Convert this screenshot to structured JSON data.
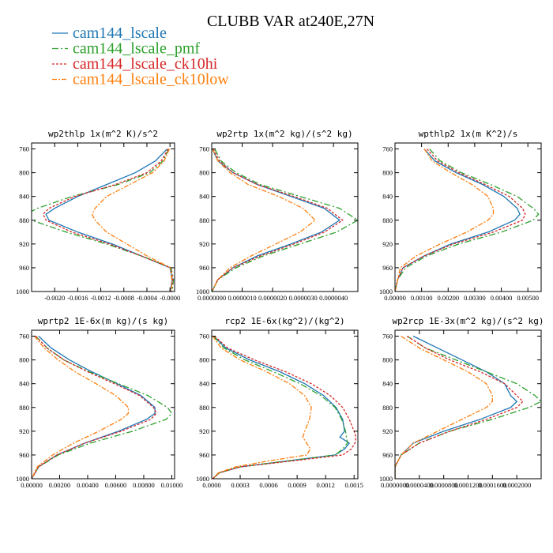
{
  "title": "CLUBB VAR at240E,27N",
  "legend": [
    {
      "name": "cam144_lscale",
      "color": "#1f77b4",
      "dash": ""
    },
    {
      "name": "cam144_lscale_pmf",
      "color": "#2ca02c",
      "dash": "8,3,2,3"
    },
    {
      "name": "cam144_lscale_ck10hi",
      "color": "#d62728",
      "dash": "3,2"
    },
    {
      "name": "cam144_lscale_ck10low",
      "color": "#ff7f0e",
      "dash": "6,2,2,2"
    }
  ],
  "chart_data": [
    {
      "type": "line",
      "title": "wp2thlp  1x(m^2 K)/s^2",
      "ylabel": "",
      "ylim": [
        1000,
        750
      ],
      "yticks": [
        760,
        800,
        840,
        880,
        920,
        960,
        1000
      ],
      "xlim": [
        -0.0024,
        8e-05
      ],
      "xticks": [
        -0.002,
        -0.0016,
        -0.0012,
        -0.0008,
        -0.0004,
        0.0
      ],
      "xticklabels": [
        "-0.0020",
        "-0.0016",
        "-0.0012",
        "-0.0008",
        "-0.0004",
        "-0.0000"
      ],
      "y": [
        760,
        780,
        800,
        820,
        840,
        860,
        870,
        880,
        900,
        920,
        940,
        960,
        980,
        1000
      ],
      "series": [
        {
          "name": "cam144_lscale",
          "values": [
            -5e-05,
            -0.00025,
            -0.0006,
            -0.0011,
            -0.0016,
            -0.002,
            -0.00215,
            -0.0021,
            -0.0016,
            -0.001,
            -0.0005,
            0.0,
            4e-05,
            0.0
          ]
        },
        {
          "name": "cam144_lscale_pmf",
          "values": [
            -2e-05,
            -0.00012,
            -0.00035,
            -0.0009,
            -0.0017,
            -0.0023,
            -0.0025,
            -0.0024,
            -0.0018,
            -0.0011,
            -0.0005,
            2e-05,
            6e-05,
            4e-05
          ]
        },
        {
          "name": "cam144_lscale_ck10hi",
          "values": [
            -3e-05,
            -0.00015,
            -0.0004,
            -0.00095,
            -0.00165,
            -0.0021,
            -0.0022,
            -0.00215,
            -0.0017,
            -0.00105,
            -0.0005,
            1e-05,
            5e-05,
            2e-05
          ]
        },
        {
          "name": "cam144_lscale_ck10low",
          "values": [
            -1e-05,
            -0.0001,
            -0.0003,
            -0.0007,
            -0.0011,
            -0.0013,
            -0.00135,
            -0.0013,
            -0.0011,
            -0.00075,
            -0.0004,
            1e-05,
            3e-05,
            2e-05
          ]
        }
      ]
    },
    {
      "type": "line",
      "title": "wp2rtp  1x(m^2 kg)/(s^2 kg)",
      "ylabel": "",
      "ylim": [
        1000,
        750
      ],
      "yticks": [
        760,
        800,
        840,
        880,
        920,
        960,
        1000
      ],
      "xlim": [
        0.0,
        4.8e-06
      ],
      "xticks": [
        0.0,
        1e-06,
        2e-06,
        3e-06,
        4e-06
      ],
      "xticklabels": [
        "0.0000000",
        "0.0000010",
        "0.0000020",
        "0.0000030",
        "0.0000040"
      ],
      "y": [
        760,
        780,
        800,
        820,
        840,
        860,
        880,
        900,
        920,
        940,
        960,
        980,
        1000
      ],
      "series": [
        {
          "name": "cam144_lscale",
          "values": [
            2e-08,
            2e-07,
            7e-07,
            1.5e-06,
            2.6e-06,
            3.7e-06,
            4.2e-06,
            3.6e-06,
            2.6e-06,
            1.5e-06,
            7e-07,
            2e-07,
            1e-08
          ]
        },
        {
          "name": "cam144_lscale_pmf",
          "values": [
            1e-07,
            3e-07,
            8e-07,
            1.6e-06,
            2.9e-06,
            4.2e-06,
            4.8e-06,
            4.1e-06,
            2.9e-06,
            1.7e-06,
            8e-07,
            2e-07,
            2e-08
          ]
        },
        {
          "name": "cam144_lscale_ck10hi",
          "values": [
            5e-08,
            2.5e-07,
            7e-07,
            1.5e-06,
            2.7e-06,
            3.8e-06,
            4.3e-06,
            3.7e-06,
            2.7e-06,
            1.6e-06,
            7e-07,
            2e-07,
            1e-08
          ]
        },
        {
          "name": "cam144_lscale_ck10low",
          "values": [
            3e-08,
            2e-07,
            6e-07,
            1.2e-06,
            2.2e-06,
            3e-06,
            3.4e-06,
            2.9e-06,
            2.1e-06,
            1.3e-06,
            6e-07,
            2e-07,
            1e-08
          ]
        }
      ]
    },
    {
      "type": "line",
      "title": "wpthlp2  1x(m K^2)/s",
      "ylabel": "",
      "ylim": [
        1000,
        750
      ],
      "yticks": [
        760,
        800,
        840,
        880,
        920,
        960,
        1000
      ],
      "xlim": [
        0.0,
        0.0055
      ],
      "xticks": [
        0.0,
        0.001,
        0.002,
        0.003,
        0.004,
        0.005
      ],
      "xticklabels": [
        "0.00000",
        "0.00100",
        "0.00200",
        "0.00300",
        "0.00400",
        "0.00500"
      ],
      "y": [
        760,
        780,
        800,
        820,
        840,
        860,
        870,
        880,
        900,
        920,
        940,
        960,
        980,
        1000
      ],
      "series": [
        {
          "name": "cam144_lscale",
          "values": [
            0.0011,
            0.0015,
            0.0023,
            0.0033,
            0.0041,
            0.0046,
            0.0047,
            0.0045,
            0.0035,
            0.0021,
            0.0011,
            0.0003,
            0.0001,
            0.0
          ]
        },
        {
          "name": "cam144_lscale_pmf",
          "values": [
            0.0013,
            0.0017,
            0.0025,
            0.0036,
            0.0046,
            0.0052,
            0.0054,
            0.0052,
            0.004,
            0.0024,
            0.0012,
            0.0004,
            0.0001,
            0.0
          ]
        },
        {
          "name": "cam144_lscale_ck10hi",
          "values": [
            0.0012,
            0.0016,
            0.0024,
            0.0034,
            0.0043,
            0.0048,
            0.0049,
            0.0048,
            0.0037,
            0.0022,
            0.0011,
            0.0003,
            0.0001,
            0.0
          ]
        },
        {
          "name": "cam144_lscale_ck10low",
          "values": [
            0.0011,
            0.0014,
            0.0021,
            0.0029,
            0.0035,
            0.0037,
            0.0037,
            0.0035,
            0.0027,
            0.0017,
            0.0008,
            0.0002,
            0.0001,
            0.0
          ]
        }
      ]
    },
    {
      "type": "line",
      "title": "wprtp2  1E-6x(m kg)/(s kg)",
      "ylabel": "",
      "ylim": [
        1000,
        750
      ],
      "yticks": [
        760,
        800,
        840,
        880,
        920,
        960,
        1000
      ],
      "xlim": [
        0.0,
        0.0102
      ],
      "xticks": [
        0.0,
        0.002,
        0.004,
        0.006,
        0.008,
        0.01
      ],
      "xticklabels": [
        "0.00000",
        "0.00200",
        "0.00400",
        "0.00600",
        "0.00800",
        "0.01000"
      ],
      "y": [
        760,
        780,
        800,
        820,
        840,
        860,
        880,
        890,
        900,
        920,
        940,
        960,
        980,
        1000
      ],
      "series": [
        {
          "name": "cam144_lscale",
          "values": [
            0.0005,
            0.0014,
            0.0027,
            0.0043,
            0.0061,
            0.0078,
            0.0088,
            0.0088,
            0.0082,
            0.0062,
            0.0038,
            0.0018,
            0.0005,
            0.0
          ]
        },
        {
          "name": "cam144_lscale_pmf",
          "values": [
            0.0003,
            0.0011,
            0.0023,
            0.0041,
            0.0062,
            0.0083,
            0.0097,
            0.01,
            0.0096,
            0.0072,
            0.0042,
            0.0019,
            0.0005,
            0.0
          ]
        },
        {
          "name": "cam144_lscale_ck10hi",
          "values": [
            0.0003,
            0.0011,
            0.0023,
            0.004,
            0.0059,
            0.0077,
            0.0087,
            0.0089,
            0.0085,
            0.0064,
            0.0038,
            0.0018,
            0.0005,
            0.0
          ]
        },
        {
          "name": "cam144_lscale_ck10low",
          "values": [
            0.0002,
            0.0009,
            0.0019,
            0.0031,
            0.0046,
            0.006,
            0.0069,
            0.0069,
            0.0064,
            0.0048,
            0.003,
            0.0015,
            0.0004,
            0.0
          ]
        }
      ]
    },
    {
      "type": "line",
      "title": "rcp2  1E-6x(kg^2)/(kg^2)",
      "ylabel": "",
      "ylim": [
        1000,
        750
      ],
      "yticks": [
        760,
        800,
        840,
        880,
        920,
        960,
        1000
      ],
      "xlim": [
        0.0,
        0.00154
      ],
      "xticks": [
        0.0,
        0.0003,
        0.0006,
        0.0009,
        0.0012,
        0.0015
      ],
      "xticklabels": [
        "0.0000",
        "0.0003",
        "0.0006",
        "0.0009",
        "0.0012",
        "0.0015"
      ],
      "y": [
        760,
        780,
        800,
        820,
        840,
        860,
        880,
        900,
        920,
        930,
        940,
        950,
        960,
        970,
        980,
        990,
        1000
      ],
      "series": [
        {
          "name": "cam144_lscale",
          "values": [
            2e-05,
            0.00015,
            0.0004,
            0.00072,
            0.00098,
            0.00118,
            0.00131,
            0.00138,
            0.0014,
            0.00135,
            0.00145,
            0.0014,
            0.0013,
            0.0008,
            0.0003,
            8e-05,
            1e-05
          ]
        },
        {
          "name": "cam144_lscale_pmf",
          "values": [
            2e-05,
            0.00013,
            0.00035,
            0.00065,
            0.00093,
            0.00115,
            0.0013,
            0.00137,
            0.00141,
            0.00142,
            0.00143,
            0.00138,
            0.0013,
            0.0008,
            0.0003,
            8e-05,
            1e-05
          ]
        },
        {
          "name": "cam144_lscale_ck10hi",
          "values": [
            3e-05,
            0.00017,
            0.00045,
            0.00078,
            0.00105,
            0.00125,
            0.00138,
            0.00145,
            0.0015,
            0.00152,
            0.00151,
            0.00147,
            0.00138,
            0.00085,
            0.0003,
            8e-05,
            1e-05
          ]
        },
        {
          "name": "cam144_lscale_ck10low",
          "values": [
            1e-05,
            0.0001,
            0.0003,
            0.00058,
            0.00082,
            0.00098,
            0.00105,
            0.00103,
            0.00098,
            0.00096,
            0.001,
            0.00104,
            0.001,
            0.0006,
            0.00025,
            7e-05,
            1e-05
          ]
        }
      ]
    },
    {
      "type": "line",
      "title": "wp2rcp  1E-3x(m^2 kg)/(s^2 kg)",
      "ylabel": "",
      "ylim": [
        1000,
        750
      ],
      "yticks": [
        760,
        800,
        840,
        880,
        920,
        960,
        1000
      ],
      "xlim": [
        0.0,
        0.00024
      ],
      "xticks": [
        0.0,
        4e-05,
        8e-05,
        0.00012,
        0.00016,
        0.0002
      ],
      "xticklabels": [
        "0.0000000",
        "0.0000400",
        "0.0000800",
        "0.0001200",
        "0.0001600",
        "0.0002000"
      ],
      "y": [
        760,
        780,
        800,
        820,
        840,
        860,
        870,
        880,
        900,
        920,
        940,
        960,
        980,
        1000
      ],
      "series": [
        {
          "name": "cam144_lscale",
          "values": [
            3e-05,
            7e-05,
            0.00011,
            0.00015,
            0.00018,
            0.00019,
            0.0002,
            0.00019,
            0.00014,
            8e-05,
            3e-05,
            1e-05,
            0.0,
            0.0
          ]
        },
        {
          "name": "cam144_lscale_pmf",
          "values": [
            2e-05,
            5e-05,
            0.0001,
            0.00015,
            0.0002,
            0.00023,
            0.00024,
            0.00022,
            0.00016,
            9e-05,
            4e-05,
            1e-05,
            0.0,
            0.0
          ]
        },
        {
          "name": "cam144_lscale_ck10hi",
          "values": [
            2e-05,
            5e-05,
            9e-05,
            0.00014,
            0.00018,
            0.0002,
            0.00021,
            0.0002,
            0.00015,
            9e-05,
            4e-05,
            1e-05,
            0.0,
            0.0
          ]
        },
        {
          "name": "cam144_lscale_ck10low",
          "values": [
            1e-05,
            4e-05,
            8e-05,
            0.00012,
            0.00015,
            0.00016,
            0.00016,
            0.00015,
            0.00011,
            7e-05,
            3e-05,
            1e-05,
            0.0,
            0.0
          ]
        }
      ]
    }
  ]
}
